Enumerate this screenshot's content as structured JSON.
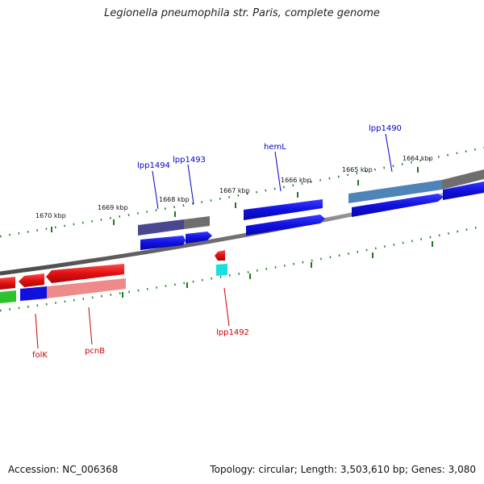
{
  "title": "Legionella pneumophila str. Paris, complete genome",
  "footer": {
    "accession": "Accession: NC_006368",
    "summary": "Topology: circular; Length: 3,503,610 bp; Genes: 3,080"
  },
  "scale_labels": [
    "1670 kbp",
    "1669 kbp",
    "1668 kbp",
    "1667 kbp",
    "1666 kbp",
    "1665 kbp",
    "1664 kbp"
  ],
  "gene_labels": [
    {
      "id": "lpp1494",
      "text": "lpp1494",
      "color": "#0000cc"
    },
    {
      "id": "lpp1493",
      "text": "lpp1493",
      "color": "#0000cc"
    },
    {
      "id": "hemL",
      "text": "hemL",
      "color": "#0000cc"
    },
    {
      "id": "lpp1490",
      "text": "lpp1490",
      "color": "#0000cc"
    },
    {
      "id": "lpp1492",
      "text": "lpp1492",
      "color": "#cc0000"
    },
    {
      "id": "folK",
      "text": "folK",
      "color": "#cc0000"
    },
    {
      "id": "pcnB",
      "text": "pcnB",
      "color": "#cc0000"
    }
  ],
  "colors": {
    "backbone": "#7a7a7a",
    "tick": "#1e7a1e",
    "forward_gene": "#1010e0",
    "reverse_gene": "#e01010",
    "cog_purple": "#4a4690",
    "cog_grey": "#6e6e6e",
    "cog_steelblue": "#4f84b8",
    "cog_pink": "#ee8a8a",
    "cog_green": "#2ec22e",
    "cog_cyan": "#18e0e0"
  }
}
